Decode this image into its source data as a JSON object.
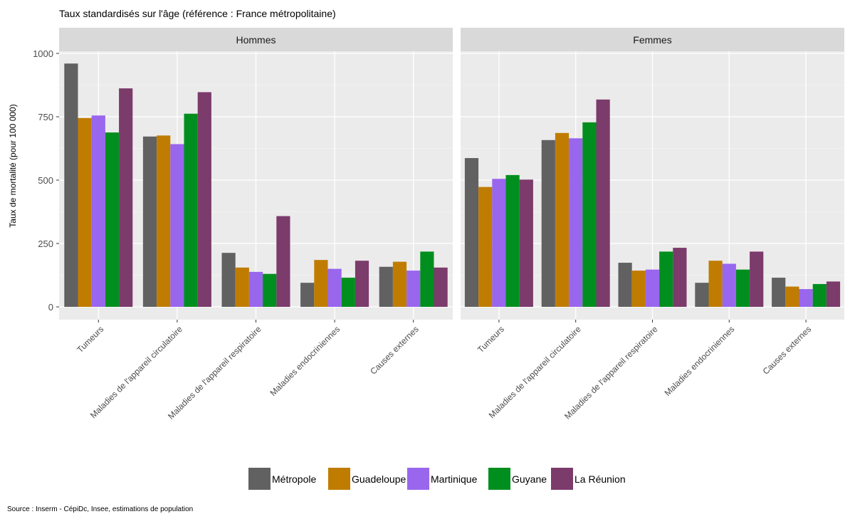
{
  "title": "Taux standardisés sur l'âge (référence : France métropolitaine)",
  "source": "Source : Inserm - CépiDc, Insee, estimations de population",
  "chart_data": {
    "type": "bar",
    "title": "Taux standardisés sur l'âge (référence : France métropolitaine)",
    "ylabel": "Taux de mortalité (pour 100 000)",
    "xlabel": "",
    "ylim": [
      0,
      1000
    ],
    "yticks": [
      0,
      250,
      500,
      750,
      1000
    ],
    "grid": true,
    "legend_position": "bottom",
    "categories": [
      "Tumeurs",
      "Maladies de l'appareil circulatoire",
      "Maladies de l'appareil respiratoire",
      "Maladies endocriniennes",
      "Causes externes"
    ],
    "series_names": [
      "Métropole",
      "Guadeloupe",
      "Martinique",
      "Guyane",
      "La Réunion"
    ],
    "colors": [
      "#616161",
      "#c07c00",
      "#9966ee",
      "#008f1e",
      "#7b3b6b"
    ],
    "panels": [
      {
        "name": "Hommes",
        "series": [
          {
            "name": "Métropole",
            "values": [
              960,
              672,
              213,
              95,
              158
            ]
          },
          {
            "name": "Guadeloupe",
            "values": [
              745,
              676,
              155,
              185,
              178
            ]
          },
          {
            "name": "Martinique",
            "values": [
              755,
              642,
              138,
              150,
              143
            ]
          },
          {
            "name": "Guyane",
            "values": [
              688,
              762,
              130,
              115,
              218
            ]
          },
          {
            "name": "La Réunion",
            "values": [
              862,
              847,
              358,
              182,
              155
            ]
          }
        ]
      },
      {
        "name": "Femmes",
        "series": [
          {
            "name": "Métropole",
            "values": [
              587,
              658,
              174,
              95,
              115
            ]
          },
          {
            "name": "Guadeloupe",
            "values": [
              473,
              686,
              143,
              182,
              80
            ]
          },
          {
            "name": "Martinique",
            "values": [
              505,
              665,
              147,
              170,
              70
            ]
          },
          {
            "name": "Guyane",
            "values": [
              520,
              728,
              218,
              147,
              90
            ]
          },
          {
            "name": "La Réunion",
            "values": [
              502,
              818,
              233,
              218,
              100
            ]
          }
        ]
      }
    ]
  }
}
